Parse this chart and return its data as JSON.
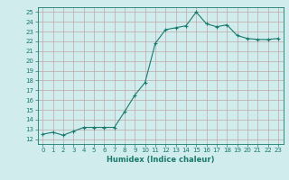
{
  "x": [
    0,
    1,
    2,
    3,
    4,
    5,
    6,
    7,
    8,
    9,
    10,
    11,
    12,
    13,
    14,
    15,
    16,
    17,
    18,
    19,
    20,
    21,
    22,
    23
  ],
  "y": [
    12.5,
    12.7,
    12.4,
    12.8,
    13.2,
    13.2,
    13.2,
    13.2,
    14.8,
    16.5,
    17.8,
    21.8,
    23.2,
    23.4,
    23.6,
    25.0,
    23.8,
    23.5,
    23.7,
    22.6,
    22.3,
    22.2,
    22.2,
    22.3
  ],
  "line_color": "#1a7a6e",
  "bg_color": "#d0ecec",
  "grid_color": "#c0a8a8",
  "xlabel": "Humidex (Indice chaleur)",
  "xlim": [
    -0.5,
    23.5
  ],
  "ylim": [
    11.5,
    25.5
  ],
  "yticks": [
    12,
    13,
    14,
    15,
    16,
    17,
    18,
    19,
    20,
    21,
    22,
    23,
    24,
    25
  ],
  "xticks": [
    0,
    1,
    2,
    3,
    4,
    5,
    6,
    7,
    8,
    9,
    10,
    11,
    12,
    13,
    14,
    15,
    16,
    17,
    18,
    19,
    20,
    21,
    22,
    23
  ],
  "tick_fontsize": 5.0,
  "xlabel_fontsize": 6.0
}
